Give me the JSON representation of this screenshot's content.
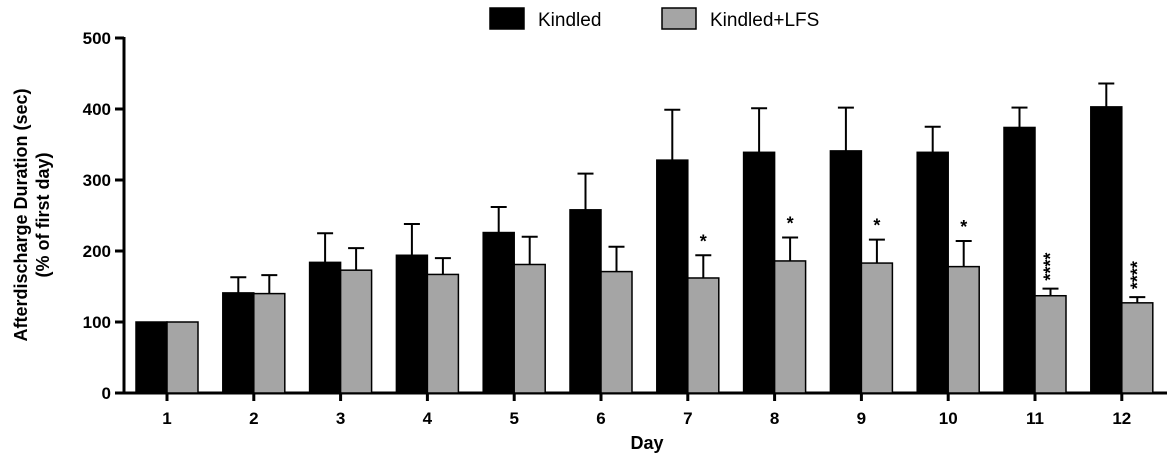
{
  "chart_data": {
    "type": "bar",
    "xlabel": "Day",
    "ylabel_line1": "Afterdischarge Duration (sec)",
    "ylabel_line2": "(% of first day)",
    "ylim": [
      0,
      500
    ],
    "yticks": [
      0,
      100,
      200,
      300,
      400,
      500
    ],
    "categories": [
      "1",
      "2",
      "3",
      "4",
      "5",
      "6",
      "7",
      "8",
      "9",
      "10",
      "11",
      "12"
    ],
    "legend_position": "top-center",
    "series": [
      {
        "name": "Kindled",
        "color": "#000000",
        "values": [
          100,
          141,
          184,
          194,
          226,
          258,
          328,
          339,
          341,
          339,
          374,
          403
        ],
        "error_upper": [
          100,
          163,
          225,
          238,
          262,
          309,
          399,
          401,
          402,
          375,
          402,
          436
        ]
      },
      {
        "name": "Kindled+LFS",
        "color": "#a5a5a5",
        "values": [
          100,
          140,
          173,
          167,
          181,
          171,
          162,
          186,
          183,
          178,
          137,
          127
        ],
        "error_upper": [
          100,
          166,
          204,
          190,
          220,
          206,
          194,
          219,
          216,
          214,
          147,
          135
        ],
        "annotations": [
          "",
          "",
          "",
          "",
          "",
          "",
          "*",
          "*",
          "*",
          "*",
          "****",
          "****"
        ]
      }
    ]
  }
}
